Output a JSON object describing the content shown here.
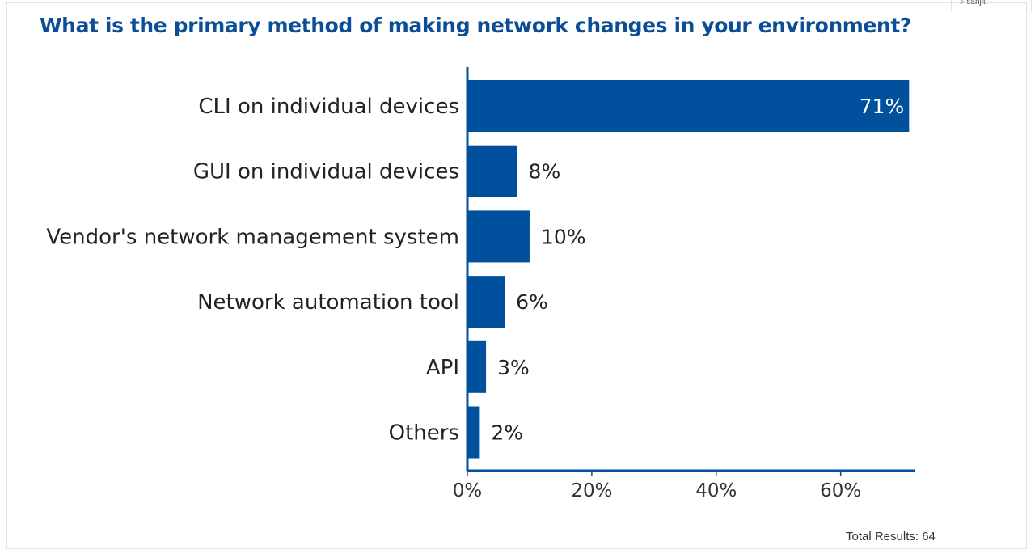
{
  "search_widget": {
    "icon": "search-icon",
    "text": "sanjit"
  },
  "chart_data": {
    "type": "bar",
    "orientation": "horizontal",
    "title": "What is the primary method of making network changes in your environment?",
    "categories": [
      "CLI on individual devices",
      "GUI on individual devices",
      "Vendor's network management system",
      "Network automation tool",
      "API",
      "Others"
    ],
    "values": [
      71,
      8,
      10,
      6,
      3,
      2
    ],
    "value_labels": [
      "71%",
      "8%",
      "10%",
      "6%",
      "3%",
      "2%"
    ],
    "xlim": [
      0,
      72
    ],
    "x_ticks": [
      0,
      20,
      40,
      60
    ],
    "x_tick_labels": [
      "0%",
      "20%",
      "40%",
      "60%"
    ],
    "grid": false,
    "bar_color": "#00509e",
    "title_color": "#0b4e97"
  },
  "footer": {
    "total_results": "Total Results: 64"
  }
}
